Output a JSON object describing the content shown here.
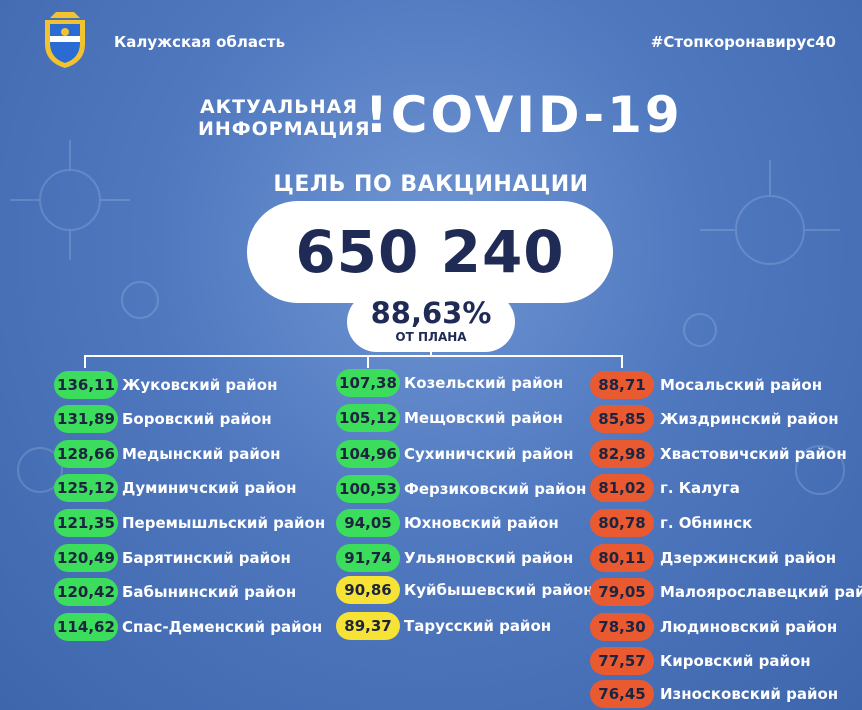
{
  "header": {
    "region": "Калужская область",
    "hashtag": "#Стопкоронавирус40"
  },
  "title": {
    "line1": "АКТУАЛЬНАЯ",
    "line2": "ИНФОРМАЦИЯ",
    "main": "!COVID-19"
  },
  "goal": {
    "label": "ЦЕЛЬ ПО ВАКЦИНАЦИИ",
    "value": "650 240",
    "percent": "88,63%",
    "percent_label": "ОТ ПЛАНА"
  },
  "colors": {
    "green": "#3cdc5c",
    "yellow": "#f7e335",
    "red": "#ea5a31"
  },
  "columns": [
    {
      "items": [
        {
          "value": "136,11",
          "name": "Жуковский район",
          "status": "green"
        },
        {
          "value": "131,89",
          "name": "Боровский район",
          "status": "green"
        },
        {
          "value": "128,66",
          "name": "Медынский район",
          "status": "green"
        },
        {
          "value": "125,12",
          "name": "Думиничский район",
          "status": "green"
        },
        {
          "value": "121,35",
          "name": "Перемышльский район",
          "status": "green"
        },
        {
          "value": "120,49",
          "name": "Барятинский район",
          "status": "green"
        },
        {
          "value": "120,42",
          "name": "Бабынинский район",
          "status": "green"
        },
        {
          "value": "114,62",
          "name": "Спас-Деменский район",
          "status": "green"
        }
      ]
    },
    {
      "items": [
        {
          "value": "107,38",
          "name": "Козельский район",
          "status": "green"
        },
        {
          "value": "105,12",
          "name": "Мещовский район",
          "status": "green"
        },
        {
          "value": "104,96",
          "name": "Сухиничский район",
          "status": "green"
        },
        {
          "value": "100,53",
          "name": "Ферзиковский район",
          "status": "green"
        },
        {
          "value": "94,05",
          "name": "Юхновский район",
          "status": "green"
        },
        {
          "value": "91,74",
          "name": "Ульяновский район",
          "status": "green"
        },
        {
          "value": "90,86",
          "name": "Куйбышевский район",
          "status": "yellow"
        },
        {
          "value": "89,37",
          "name": "Тарусский район",
          "status": "yellow"
        }
      ]
    },
    {
      "items": [
        {
          "value": "88,71",
          "name": "Мосальский район",
          "status": "red"
        },
        {
          "value": "85,85",
          "name": "Жиздринский район",
          "status": "red"
        },
        {
          "value": "82,98",
          "name": "Хвастовичский район",
          "status": "red"
        },
        {
          "value": "81,02",
          "name": "г. Калуга",
          "status": "red"
        },
        {
          "value": "80,78",
          "name": "г. Обнинск",
          "status": "red"
        },
        {
          "value": "80,11",
          "name": "Дзержинский район",
          "status": "red"
        },
        {
          "value": "79,05",
          "name": "Малоярославецкий район",
          "status": "red"
        },
        {
          "value": "78,30",
          "name": "Людиновский район",
          "status": "red"
        },
        {
          "value": "77,57",
          "name": "Кировский район",
          "status": "red"
        },
        {
          "value": "76,45",
          "name": "Износковский район",
          "status": "red"
        }
      ]
    }
  ]
}
